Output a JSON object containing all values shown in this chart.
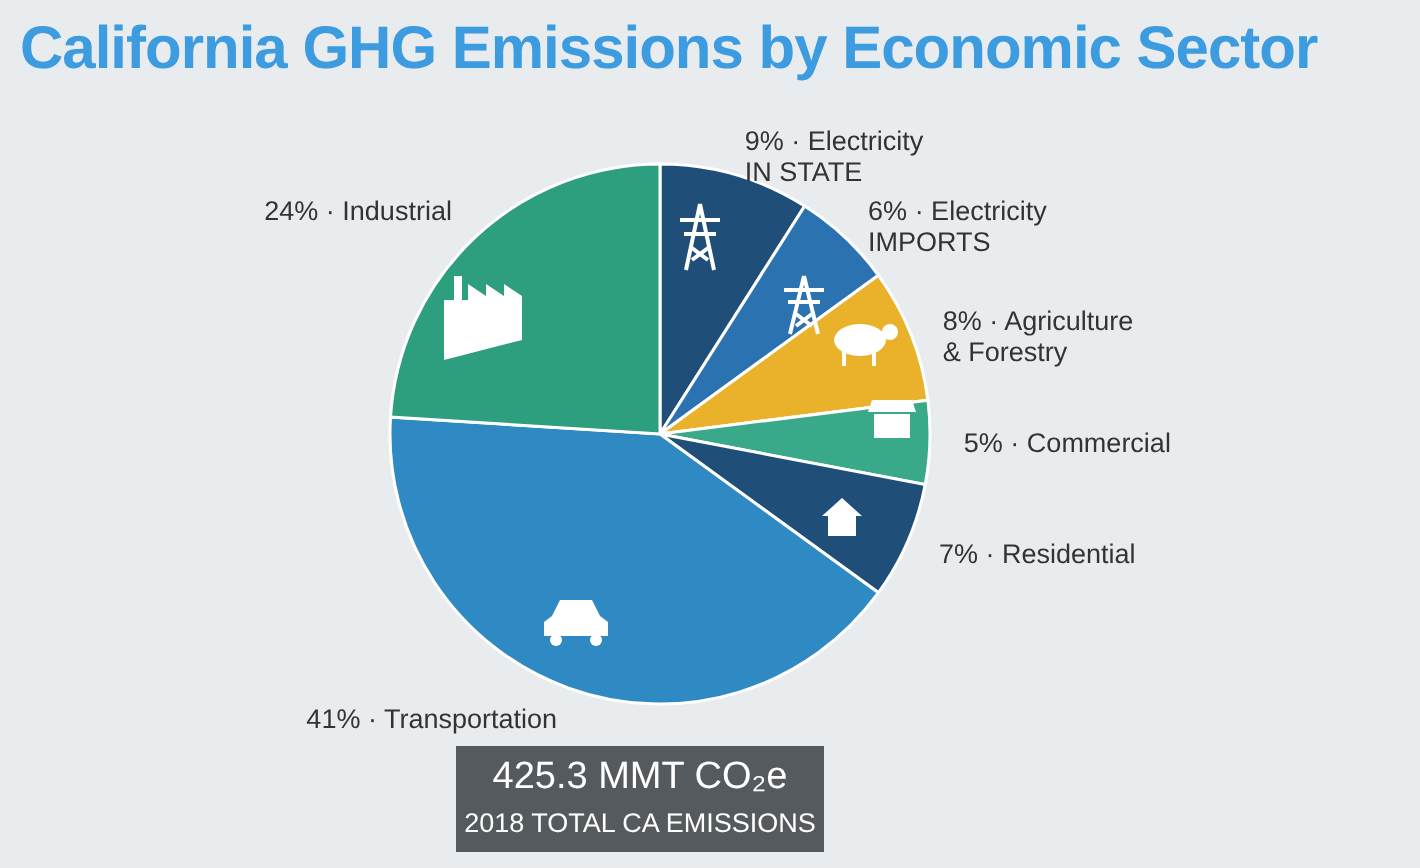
{
  "chart_data": {
    "type": "pie",
    "title": "California GHG Emissions by Economic Sector",
    "categories": [
      "Electricity\nIN STATE",
      "Electricity\nIMPORTS",
      "Agriculture\n& Forestry",
      "Commercial",
      "Residential",
      "Transportation",
      "Industrial"
    ],
    "values": [
      9,
      6,
      8,
      5,
      7,
      41,
      24
    ],
    "value_labels": [
      "9% ·",
      "6% ·",
      "8% ·",
      "5% ·",
      "7% ·",
      "41% ·",
      "24% ·"
    ],
    "colors": [
      "#1f4f78",
      "#2a72b0",
      "#eab12a",
      "#39a98a",
      "#1f4f78",
      "#2f8ac4",
      "#2d9e7e"
    ],
    "annotations": [
      "425.3 MMT CO₂e",
      "2018 TOTAL CA EMISSIONS"
    ]
  }
}
